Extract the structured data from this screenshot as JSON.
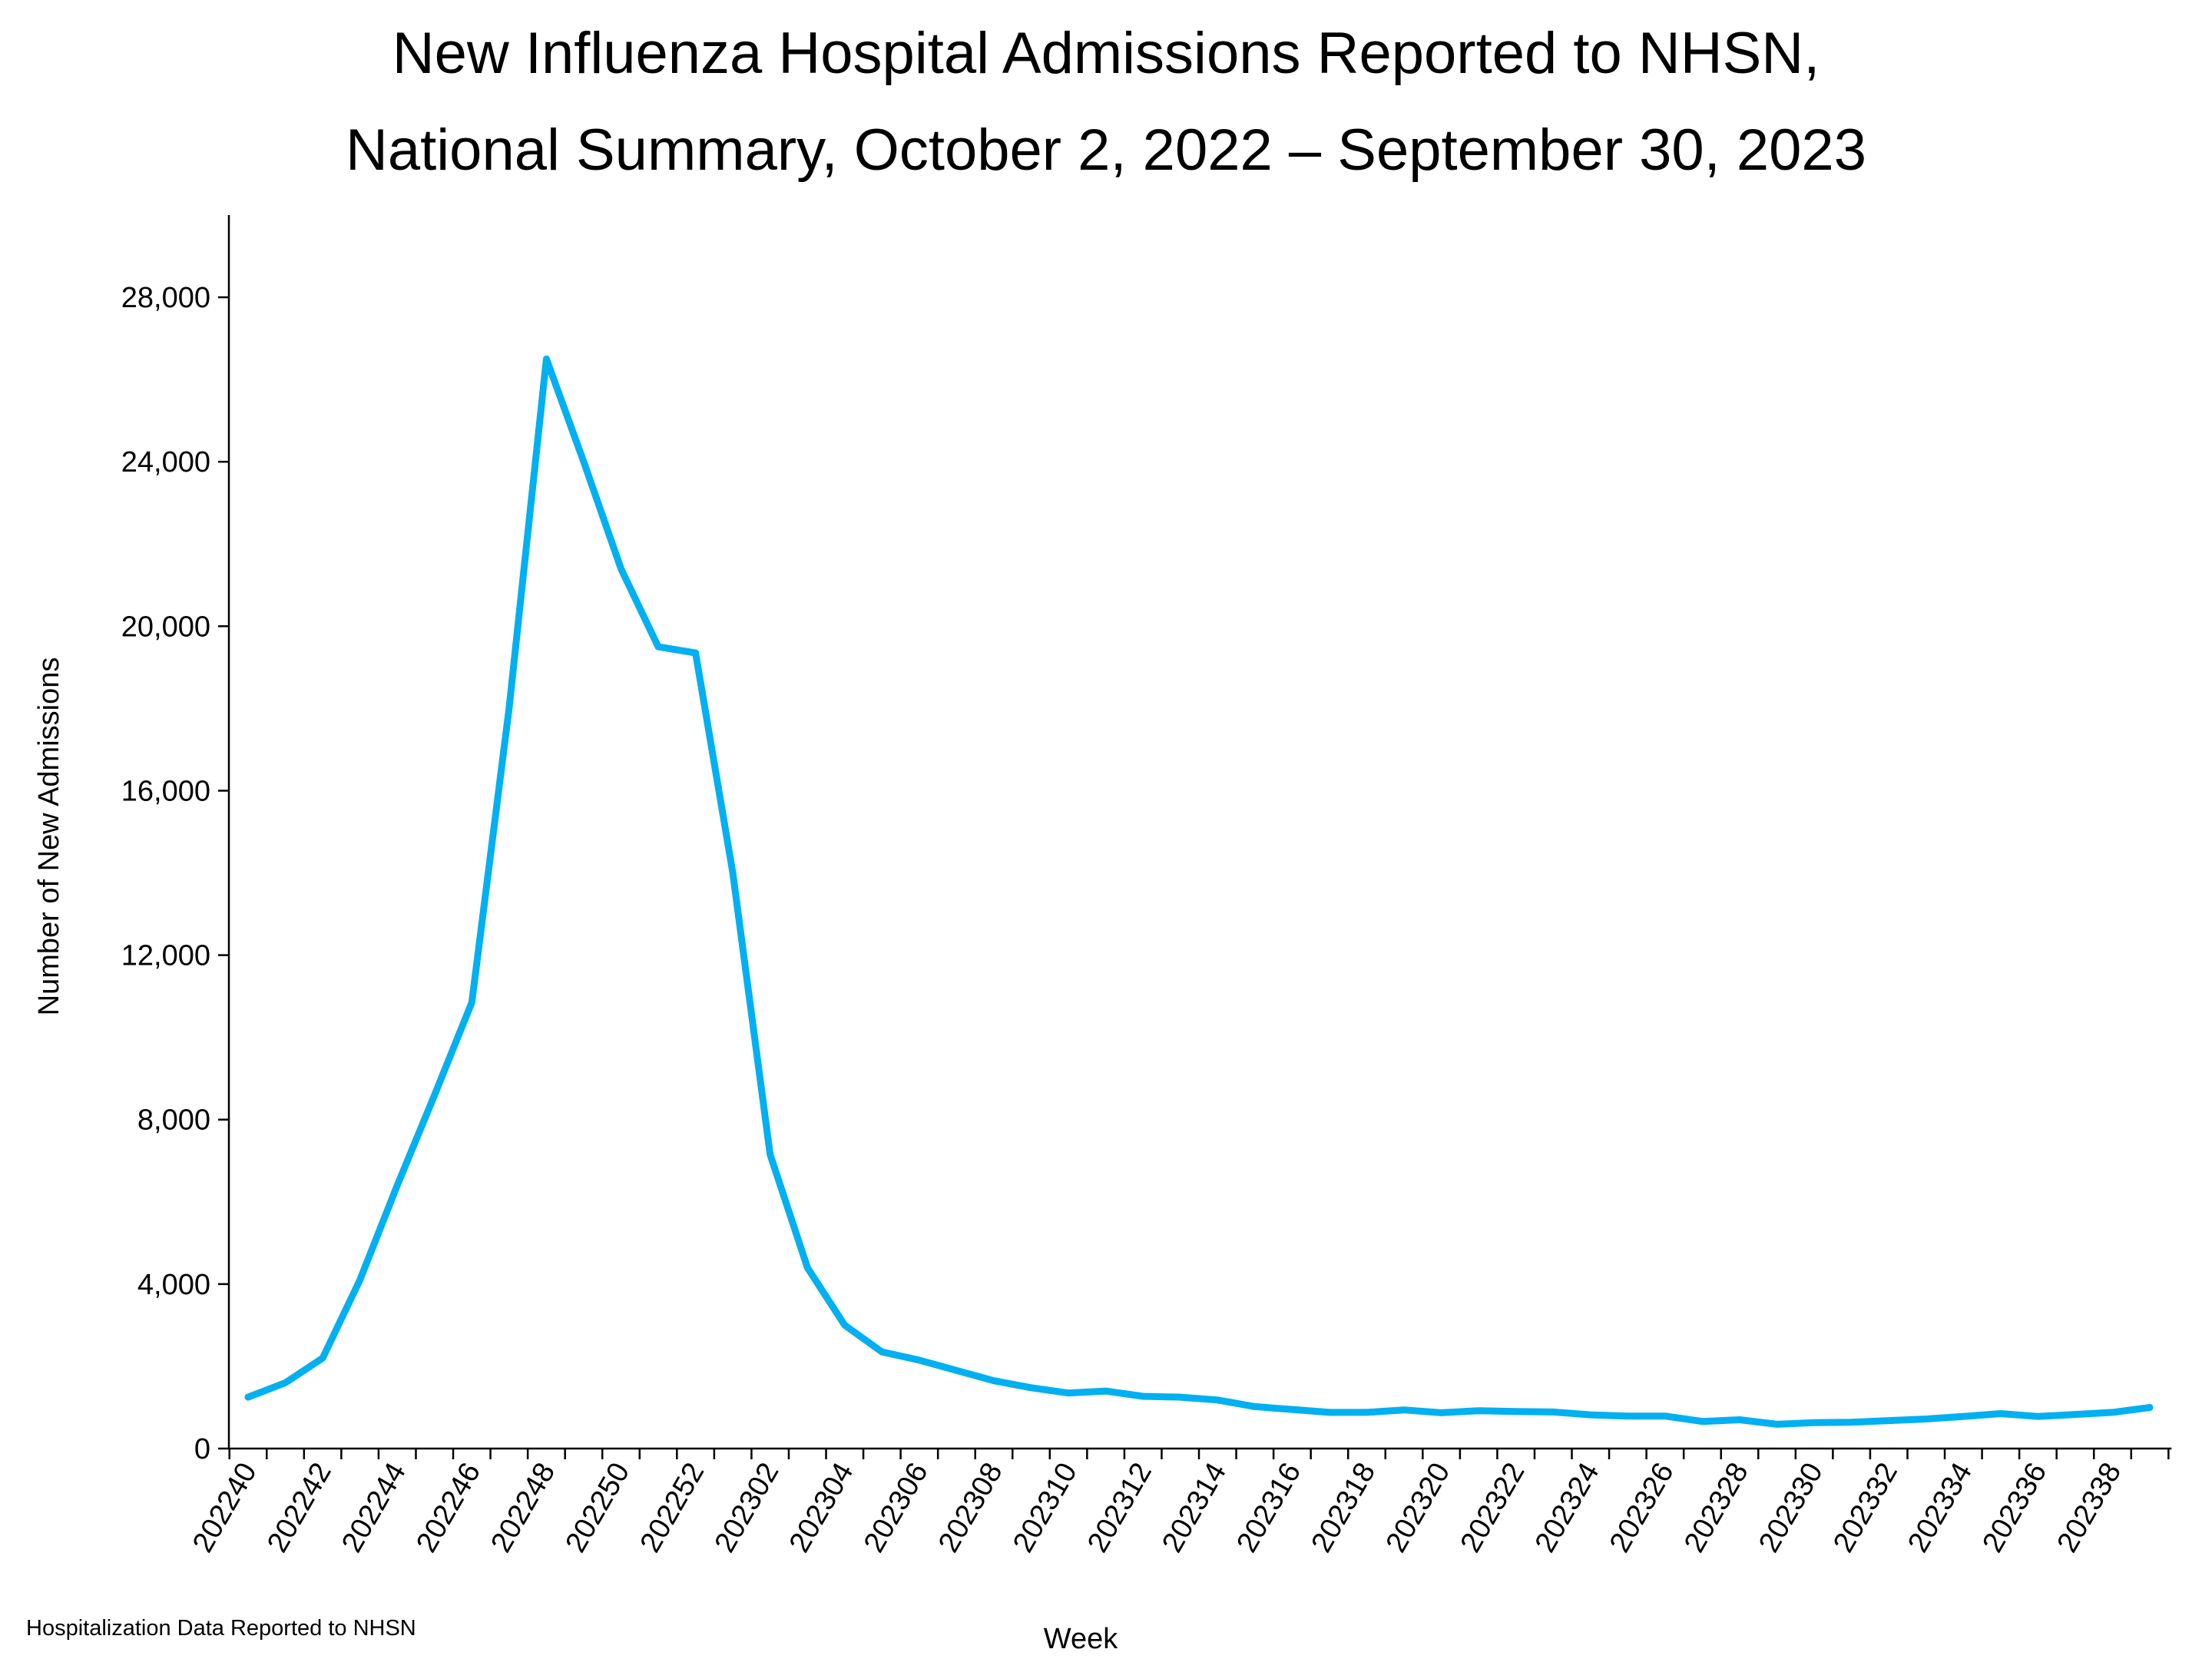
{
  "title_line1": "New Influenza Hospital Admissions Reported to NHSN,",
  "title_line2": "National Summary, October 2, 2022 – September 30, 2023",
  "footnote": "Hospitalization Data Reported to NHSN",
  "chart_data": {
    "type": "line",
    "title": "New Influenza Hospital Admissions Reported to NHSN, National Summary, October 2, 2022 – September 30, 2023",
    "xlabel": "Week",
    "ylabel": "Number of New Admissions",
    "ylim": [
      0,
      30000
    ],
    "y_ticks": [
      0,
      4000,
      8000,
      12000,
      16000,
      20000,
      24000,
      28000
    ],
    "y_tick_labels": [
      "0",
      "4,000",
      "8,000",
      "12,000",
      "16,000",
      "20,000",
      "24,000",
      "28,000"
    ],
    "x_tick_labels": [
      "202240",
      "202242",
      "202244",
      "202246",
      "202248",
      "202250",
      "202252",
      "202302",
      "202304",
      "202306",
      "202308",
      "202310",
      "202312",
      "202314",
      "202316",
      "202318",
      "202320",
      "202322",
      "202324",
      "202326",
      "202328",
      "202330",
      "202332",
      "202334",
      "202336",
      "202338"
    ],
    "line_color": "#00b0f0",
    "grid": false,
    "legend": "none",
    "series": [
      {
        "x": [
          "202240",
          "202241",
          "202242",
          "202243",
          "202244",
          "202245",
          "202246",
          "202247",
          "202248",
          "202249",
          "202250",
          "202251",
          "202252",
          "202301",
          "202302",
          "202303",
          "202304",
          "202305",
          "202306",
          "202307",
          "202308",
          "202309",
          "202310",
          "202311",
          "202312",
          "202313",
          "202314",
          "202315",
          "202316",
          "202317",
          "202318",
          "202319",
          "202320",
          "202321",
          "202322",
          "202323",
          "202324",
          "202325",
          "202326",
          "202327",
          "202328",
          "202329",
          "202330",
          "202331",
          "202332",
          "202333",
          "202334",
          "202335",
          "202336",
          "202337",
          "202338",
          "202339"
        ],
        "values": [
          1250,
          1600,
          2200,
          4100,
          6400,
          8600,
          10850,
          18000,
          26500,
          24000,
          21400,
          19500,
          19350,
          14000,
          7150,
          4400,
          3000,
          2350,
          2150,
          1900,
          1650,
          1480,
          1350,
          1400,
          1270,
          1250,
          1180,
          1020,
          950,
          880,
          880,
          940,
          870,
          920,
          900,
          890,
          820,
          790,
          790,
          660,
          700,
          590,
          630,
          640,
          680,
          720,
          780,
          850,
          780,
          830,
          880,
          1000
        ]
      }
    ]
  }
}
